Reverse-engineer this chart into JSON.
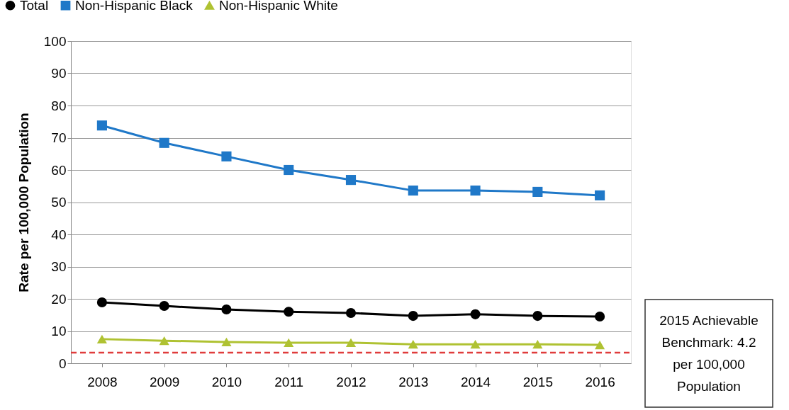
{
  "chart_data": {
    "type": "line",
    "ylabel": "Rate per 100,000 Population",
    "categories": [
      "2008",
      "2009",
      "2010",
      "2011",
      "2012",
      "2013",
      "2014",
      "2015",
      "2016"
    ],
    "series": [
      {
        "name": "Total",
        "color": "#000000",
        "marker": "circle",
        "values": [
          18.9,
          17.8,
          16.7,
          16.0,
          15.6,
          14.7,
          15.2,
          14.7,
          14.5
        ]
      },
      {
        "name": "Non-Hispanic Black",
        "color": "#1f78c8",
        "marker": "square",
        "values": [
          73.8,
          68.4,
          64.2,
          60.0,
          56.9,
          53.6,
          53.6,
          53.2,
          52.1
        ]
      },
      {
        "name": "Non-Hispanic White",
        "color": "#afc232",
        "marker": "triangle",
        "values": [
          7.5,
          7.0,
          6.6,
          6.4,
          6.4,
          5.9,
          5.9,
          5.9,
          5.7
        ]
      }
    ],
    "ylim": [
      0,
      100
    ],
    "yticks": [
      0,
      10,
      20,
      30,
      40,
      50,
      60,
      70,
      80,
      90,
      100
    ],
    "grid": "y",
    "legend": "top left",
    "line_style": "solid",
    "ref_lines": [
      {
        "axis": "y",
        "value": 3.3,
        "color": "#e03c3c",
        "line_style": "dashed"
      }
    ],
    "annotations": [
      "2015 Achievable Benchmark: 4.2 per 100,000 Population"
    ]
  }
}
